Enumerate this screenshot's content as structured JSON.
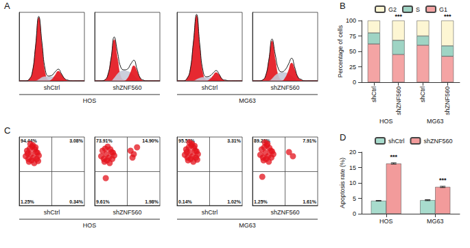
{
  "chart_data": [
    {
      "type": "area",
      "panel": "A",
      "label": "shCtrl",
      "group": "HOS",
      "xlim": [
        0,
        100
      ],
      "ylim": [
        0,
        100
      ],
      "tick_labels": false,
      "grid": false,
      "x": [
        0,
        5,
        10,
        15,
        20,
        25,
        30,
        35,
        40,
        45,
        50,
        55,
        60,
        65,
        70,
        75,
        80,
        85,
        90,
        95,
        100
      ],
      "series": [
        {
          "type": "area",
          "color": "#e3121b",
          "values": [
            0,
            0,
            0,
            2,
            12,
            50,
            92,
            50,
            10,
            1,
            0,
            0,
            0,
            0,
            0,
            0,
            0,
            0,
            0,
            0,
            0
          ]
        },
        {
          "type": "area",
          "color": "#c5c9d8",
          "values": [
            0,
            0,
            0,
            0,
            0,
            0,
            2,
            5,
            6,
            6,
            6,
            5,
            3,
            1,
            0,
            0,
            0,
            0,
            0,
            0,
            0
          ]
        },
        {
          "type": "area",
          "color": "#e3121b",
          "values": [
            0,
            0,
            0,
            0,
            0,
            0,
            0,
            0,
            0,
            0,
            2,
            8,
            14,
            9,
            3,
            0,
            0,
            0,
            0,
            0,
            0
          ]
        },
        {
          "type": "line",
          "color": "#1a1a1a",
          "values": [
            0,
            0,
            0,
            2,
            12,
            50,
            94,
            55,
            16,
            7,
            8,
            13,
            17,
            10,
            3,
            1,
            0,
            0,
            0,
            0,
            0
          ]
        }
      ]
    },
    {
      "type": "area",
      "panel": "A",
      "label": "shZNF560",
      "group": "HOS",
      "xlim": [
        0,
        100
      ],
      "ylim": [
        0,
        100
      ],
      "tick_labels": false,
      "grid": false,
      "x": [
        0,
        5,
        10,
        15,
        20,
        25,
        30,
        35,
        40,
        45,
        50,
        55,
        60,
        65,
        70,
        75,
        80,
        85,
        90,
        95,
        100
      ],
      "series": [
        {
          "type": "area",
          "color": "#e3121b",
          "values": [
            0,
            0,
            0,
            1,
            8,
            32,
            60,
            32,
            6,
            1,
            0,
            0,
            0,
            0,
            0,
            0,
            0,
            0,
            0,
            0,
            0
          ]
        },
        {
          "type": "area",
          "color": "#c5c9d8",
          "values": [
            0,
            0,
            0,
            0,
            0,
            0,
            4,
            10,
            14,
            15,
            14,
            12,
            8,
            3,
            0,
            0,
            0,
            0,
            0,
            0,
            0
          ]
        },
        {
          "type": "area",
          "color": "#e3121b",
          "values": [
            0,
            0,
            0,
            0,
            0,
            0,
            0,
            0,
            0,
            0,
            3,
            12,
            22,
            14,
            4,
            0,
            0,
            0,
            0,
            0,
            0
          ]
        },
        {
          "type": "line",
          "color": "#1a1a1a",
          "values": [
            0,
            0,
            0,
            1,
            8,
            32,
            64,
            42,
            20,
            16,
            17,
            24,
            30,
            17,
            4,
            1,
            0,
            0,
            0,
            0,
            0
          ]
        }
      ]
    },
    {
      "type": "area",
      "panel": "A",
      "label": "shCtrl",
      "group": "MG63",
      "xlim": [
        0,
        100
      ],
      "ylim": [
        0,
        100
      ],
      "tick_labels": false,
      "grid": false,
      "x": [
        0,
        5,
        10,
        15,
        20,
        25,
        30,
        35,
        40,
        45,
        50,
        55,
        60,
        65,
        70,
        75,
        80,
        85,
        90,
        95,
        100
      ],
      "series": [
        {
          "type": "area",
          "color": "#e3121b",
          "values": [
            0,
            0,
            0,
            3,
            15,
            55,
            95,
            48,
            9,
            1,
            0,
            0,
            0,
            0,
            0,
            0,
            0,
            0,
            0,
            0,
            0
          ]
        },
        {
          "type": "area",
          "color": "#c5c9d8",
          "values": [
            0,
            0,
            0,
            0,
            0,
            0,
            2,
            4,
            5,
            5,
            5,
            4,
            3,
            1,
            0,
            0,
            0,
            0,
            0,
            0,
            0
          ]
        },
        {
          "type": "area",
          "color": "#e3121b",
          "values": [
            0,
            0,
            0,
            0,
            0,
            0,
            0,
            0,
            0,
            0,
            2,
            7,
            12,
            8,
            2,
            0,
            0,
            0,
            0,
            0,
            0
          ]
        },
        {
          "type": "line",
          "color": "#1a1a1a",
          "values": [
            0,
            0,
            0,
            3,
            15,
            55,
            97,
            52,
            14,
            6,
            7,
            11,
            15,
            9,
            2,
            1,
            0,
            0,
            0,
            0,
            0
          ]
        }
      ]
    },
    {
      "type": "area",
      "panel": "A",
      "label": "shZNF560",
      "group": "MG63",
      "xlim": [
        0,
        100
      ],
      "ylim": [
        0,
        100
      ],
      "tick_labels": false,
      "grid": false,
      "x": [
        0,
        5,
        10,
        15,
        20,
        25,
        30,
        35,
        40,
        45,
        50,
        55,
        60,
        65,
        70,
        75,
        80,
        85,
        90,
        95,
        100
      ],
      "series": [
        {
          "type": "area",
          "color": "#e3121b",
          "values": [
            0,
            0,
            0,
            1,
            7,
            30,
            58,
            30,
            6,
            1,
            0,
            0,
            0,
            0,
            0,
            0,
            0,
            0,
            0,
            0,
            0
          ]
        },
        {
          "type": "area",
          "color": "#c5c9d8",
          "values": [
            0,
            0,
            0,
            0,
            0,
            0,
            3,
            8,
            11,
            12,
            12,
            10,
            7,
            3,
            0,
            0,
            0,
            0,
            0,
            0,
            0
          ]
        },
        {
          "type": "area",
          "color": "#e3121b",
          "values": [
            0,
            0,
            0,
            0,
            0,
            0,
            0,
            0,
            0,
            0,
            4,
            14,
            26,
            16,
            5,
            1,
            0,
            0,
            0,
            0,
            0
          ]
        },
        {
          "type": "line",
          "color": "#1a1a1a",
          "values": [
            0,
            0,
            0,
            1,
            7,
            30,
            61,
            38,
            17,
            13,
            16,
            24,
            33,
            19,
            5,
            2,
            0,
            0,
            0,
            0,
            0
          ]
        }
      ]
    },
    {
      "type": "bar",
      "panel": "B",
      "stacked": true,
      "grid": false,
      "legend": "top",
      "categories": [
        "shCtrl",
        "shZNF560",
        "shCtrl",
        "shZNF560"
      ],
      "groups": [
        "HOS",
        "HOS",
        "MG63",
        "MG63"
      ],
      "ylim": [
        0,
        100
      ],
      "yticks": [
        0,
        25,
        50,
        75,
        100
      ],
      "y_label": "Percentage of cells",
      "significance": [
        null,
        "***",
        null,
        "***"
      ],
      "series": [
        {
          "name": "G1",
          "color": "#f4a4a4",
          "values": [
            62,
            45,
            60,
            42
          ]
        },
        {
          "name": "S",
          "color": "#9fd4c4",
          "values": [
            18,
            23,
            15,
            17
          ]
        },
        {
          "name": "G2",
          "color": "#fdf6d3",
          "values": [
            20,
            32,
            25,
            41
          ]
        }
      ]
    },
    {
      "type": "scatter",
      "panel": "C",
      "label": "shCtrl",
      "group": "HOS",
      "xlim": [
        0,
        100
      ],
      "ylim": [
        0,
        100
      ],
      "tick_labels": false,
      "grid": false,
      "color": "#e3121b",
      "gate": {
        "x": 50,
        "y": 50
      },
      "x": [
        10,
        14,
        18,
        22,
        26,
        30,
        12,
        16,
        20,
        24,
        28,
        15,
        19,
        23,
        27,
        17,
        21,
        25,
        13,
        29
      ],
      "values": [
        72,
        68,
        75,
        70,
        78,
        73,
        80,
        83,
        86,
        82,
        77,
        64,
        66,
        62,
        68,
        90,
        88,
        85,
        76,
        65
      ],
      "quadrants": [
        {
          "position": "upper_left",
          "value": 94.44,
          "label": "94.44%"
        },
        {
          "position": "upper_right",
          "value": 3.08,
          "label": "3.08%"
        },
        {
          "position": "lower_left",
          "value": 1.25,
          "label": "1.25%"
        },
        {
          "position": "lower_right",
          "value": 0.34,
          "label": "0.34%"
        }
      ]
    },
    {
      "type": "scatter",
      "panel": "C",
      "label": "shZNF560",
      "group": "HOS",
      "xlim": [
        0,
        100
      ],
      "ylim": [
        0,
        100
      ],
      "tick_labels": false,
      "grid": false,
      "color": "#e3121b",
      "gate": {
        "x": 50,
        "y": 50
      },
      "x": [
        10,
        14,
        18,
        22,
        26,
        30,
        12,
        16,
        20,
        24,
        28,
        15,
        19,
        23,
        27,
        55,
        60,
        65,
        58,
        17
      ],
      "values": [
        72,
        68,
        75,
        70,
        78,
        73,
        80,
        83,
        86,
        82,
        77,
        64,
        66,
        62,
        68,
        80,
        75,
        85,
        70,
        40
      ],
      "quadrants": [
        {
          "position": "upper_left",
          "value": 73.91,
          "label": "73.91%"
        },
        {
          "position": "upper_right",
          "value": 14.9,
          "label": "14.90%"
        },
        {
          "position": "lower_left",
          "value": 9.61,
          "label": "9.61%"
        },
        {
          "position": "lower_right",
          "value": 1.98,
          "label": "1.98%"
        }
      ]
    },
    {
      "type": "scatter",
      "panel": "C",
      "label": "shCtrl",
      "group": "MG63",
      "xlim": [
        0,
        100
      ],
      "ylim": [
        0,
        100
      ],
      "tick_labels": false,
      "grid": false,
      "color": "#e3121b",
      "gate": {
        "x": 50,
        "y": 50
      },
      "x": [
        12,
        16,
        20,
        24,
        28,
        32,
        14,
        18,
        22,
        26,
        30,
        17,
        21,
        25,
        29,
        19,
        23,
        27,
        15,
        31
      ],
      "values": [
        74,
        70,
        77,
        72,
        80,
        75,
        82,
        85,
        88,
        84,
        79,
        66,
        68,
        64,
        70,
        92,
        90,
        87,
        78,
        67
      ],
      "quadrants": [
        {
          "position": "upper_left",
          "value": 95.53,
          "label": "95.53%"
        },
        {
          "position": "upper_right",
          "value": 3.31,
          "label": "3.31%"
        },
        {
          "position": "lower_left",
          "value": 0.14,
          "label": "0.14%"
        },
        {
          "position": "lower_right",
          "value": 1.02,
          "label": "1.02%"
        }
      ]
    },
    {
      "type": "scatter",
      "panel": "C",
      "label": "shZNF560",
      "group": "MG63",
      "xlim": [
        0,
        100
      ],
      "ylim": [
        0,
        100
      ],
      "tick_labels": false,
      "grid": false,
      "color": "#e3121b",
      "gate": {
        "x": 50,
        "y": 50
      },
      "x": [
        12,
        16,
        20,
        24,
        28,
        32,
        14,
        18,
        22,
        26,
        30,
        17,
        21,
        25,
        29,
        56,
        62,
        19,
        23,
        15
      ],
      "values": [
        74,
        70,
        77,
        72,
        80,
        75,
        82,
        85,
        88,
        84,
        79,
        66,
        68,
        64,
        70,
        78,
        72,
        92,
        90,
        42
      ],
      "quadrants": [
        {
          "position": "upper_left",
          "value": 89.23,
          "label": "89.23%"
        },
        {
          "position": "upper_right",
          "value": 7.91,
          "label": "7.91%"
        },
        {
          "position": "lower_left",
          "value": 1.25,
          "label": "1.25%"
        },
        {
          "position": "lower_right",
          "value": 1.61,
          "label": "1.61%"
        }
      ]
    },
    {
      "type": "bar",
      "panel": "D",
      "grid": false,
      "legend": "top",
      "categories": [
        "HOS",
        "MG63"
      ],
      "ylim": [
        0,
        20
      ],
      "yticks": [
        0,
        5,
        10,
        15,
        20
      ],
      "y_label": "Apoptosis rate (%)",
      "series": [
        {
          "name": "shCtrl",
          "color": "#a8dccd",
          "values": [
            4.2,
            4.4
          ],
          "errors": [
            0.1,
            0.15
          ]
        },
        {
          "name": "shZNF560",
          "color": "#f29b9b",
          "values": [
            16.3,
            8.7
          ],
          "errors": [
            0.2,
            0.2
          ],
          "significance": [
            "***",
            "***"
          ]
        }
      ]
    }
  ]
}
